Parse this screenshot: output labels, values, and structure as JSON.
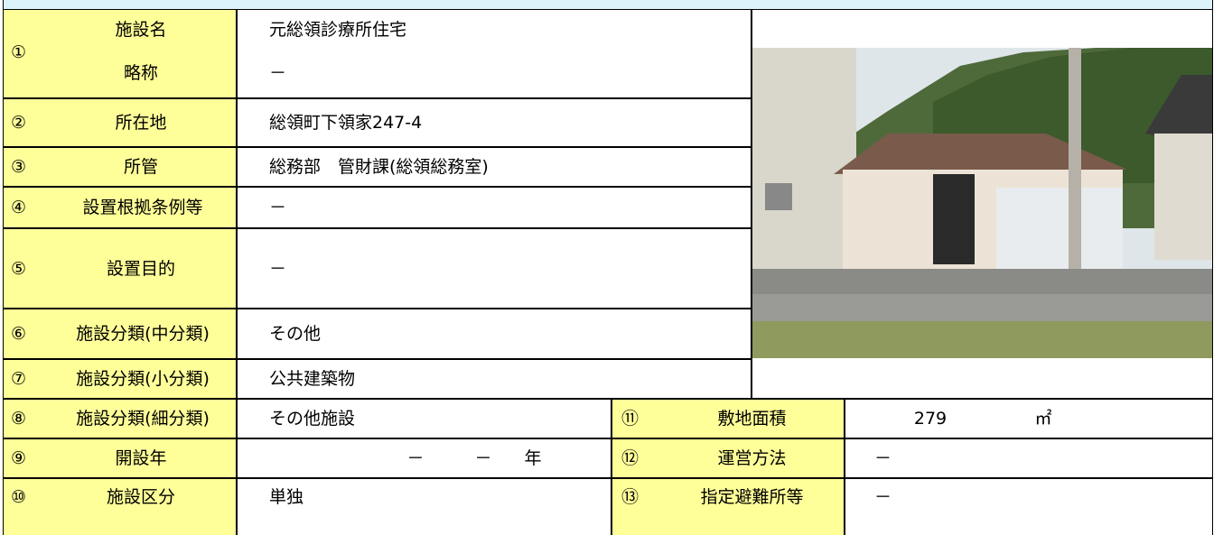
{
  "facility": {
    "number": "①",
    "name_label": "施設名",
    "name": "元総領診療所住宅",
    "abbr_label": "略称",
    "abbr": "－"
  },
  "rows": [
    {
      "number": "②",
      "label": "所在地",
      "value": "総領町下領家247-4"
    },
    {
      "number": "③",
      "label": "所管",
      "value": "総務部　管財課(総領総務室)"
    },
    {
      "number": "④",
      "label": "設置根拠条例等",
      "value": "－"
    },
    {
      "number": "⑤",
      "label": "設置目的",
      "value": "－"
    },
    {
      "number": "⑥",
      "label": "施設分類(中分類)",
      "value": "その他"
    },
    {
      "number": "⑦",
      "label": "施設分類(小分類)",
      "value": "公共建築物"
    }
  ],
  "lower": [
    {
      "number": "⑧",
      "label": "施設分類(細分類)",
      "value": "その他施設",
      "right": {
        "number": "⑪",
        "label": "敷地面積",
        "value": "279",
        "unit": "㎡"
      }
    },
    {
      "number": "⑨",
      "label": "開設年",
      "value": {
        "era": "－",
        "year": "－",
        "unit": "年"
      },
      "right": {
        "number": "⑫",
        "label": "運営方法",
        "value": "－"
      }
    },
    {
      "number": "⑩",
      "label": "施設区分",
      "value": "単独",
      "right": {
        "number": "⑬",
        "label": "指定避難所等",
        "value": "－"
      }
    }
  ]
}
